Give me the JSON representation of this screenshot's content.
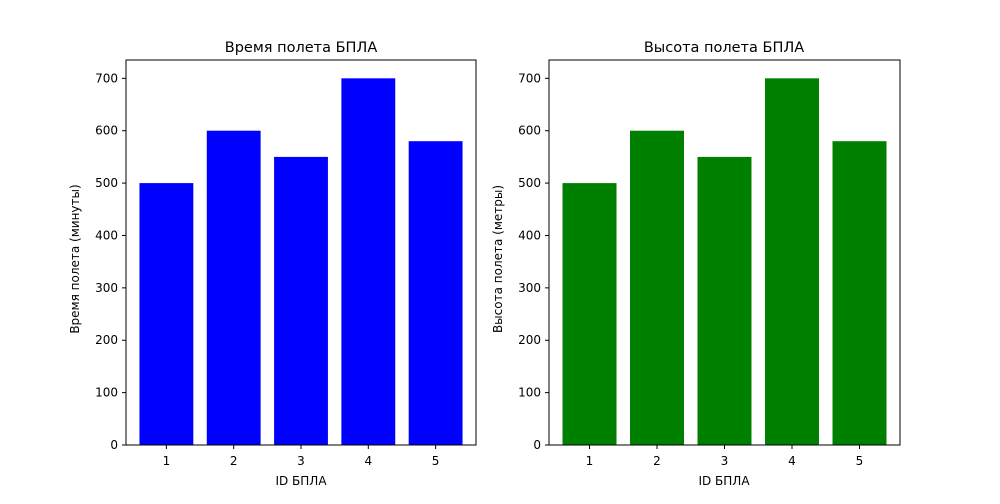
{
  "chart_data": [
    {
      "type": "bar",
      "title": "Время полета БПЛА",
      "xlabel": "ID БПЛА",
      "ylabel": "Время полета (минуты)",
      "categories": [
        "1",
        "2",
        "3",
        "4",
        "5"
      ],
      "values": [
        500,
        600,
        550,
        700,
        580
      ],
      "color": "#0000ff",
      "ylim": [
        0,
        735
      ],
      "yticks": [
        0,
        100,
        200,
        300,
        400,
        500,
        600,
        700
      ],
      "grid": false
    },
    {
      "type": "bar",
      "title": "Высота полета БПЛА",
      "xlabel": "ID БПЛА",
      "ylabel": "Высота полета (метры)",
      "categories": [
        "1",
        "2",
        "3",
        "4",
        "5"
      ],
      "values": [
        500,
        600,
        550,
        700,
        580
      ],
      "color": "#008000",
      "ylim": [
        0,
        735
      ],
      "yticks": [
        0,
        100,
        200,
        300,
        400,
        500,
        600,
        700
      ],
      "grid": false
    }
  ]
}
